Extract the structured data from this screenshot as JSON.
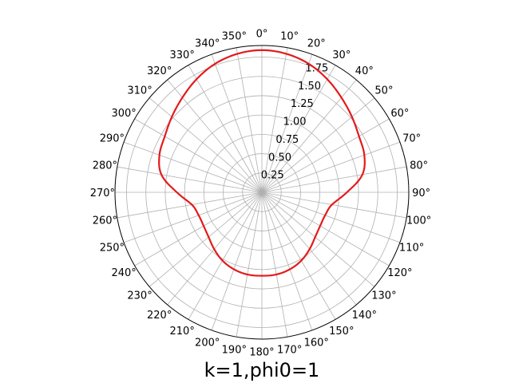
{
  "chart_data": {
    "type": "line",
    "projection": "polar",
    "title": "k=1,phi0=1",
    "theta_zero_location": "top",
    "theta_direction": "clockwise",
    "theta_ticks_deg": [
      0,
      10,
      20,
      30,
      40,
      50,
      60,
      70,
      80,
      90,
      100,
      110,
      120,
      130,
      140,
      150,
      160,
      170,
      180,
      190,
      200,
      210,
      220,
      230,
      240,
      250,
      260,
      270,
      280,
      290,
      300,
      310,
      320,
      330,
      340,
      350
    ],
    "theta_tick_labels": [
      "0°",
      "10°",
      "20°",
      "30°",
      "40°",
      "50°",
      "60°",
      "70°",
      "80°",
      "90°",
      "100°",
      "110°",
      "120°",
      "130°",
      "140°",
      "150°",
      "160°",
      "170°",
      "180°",
      "190°",
      "200°",
      "210°",
      "220°",
      "230°",
      "240°",
      "250°",
      "260°",
      "270°",
      "280°",
      "290°",
      "300°",
      "310°",
      "320°",
      "330°",
      "340°",
      "350°"
    ],
    "r_ticks": [
      0.25,
      0.5,
      0.75,
      1.0,
      1.25,
      1.5,
      1.75
    ],
    "r_tick_labels": [
      "0.25",
      "0.50",
      "0.75",
      "1.00",
      "1.25",
      "1.50",
      "1.75"
    ],
    "rlim": [
      0,
      1.9
    ],
    "grid": true,
    "series": [
      {
        "color": "#e41a1c",
        "theta_deg": [
          0,
          10,
          20,
          30,
          40,
          50,
          60,
          70,
          80,
          90,
          100,
          110,
          120,
          130,
          140,
          150,
          160,
          170,
          180,
          190,
          200,
          210,
          220,
          230,
          240,
          250,
          260,
          270,
          280,
          290,
          300,
          310,
          320,
          330,
          340,
          350
        ],
        "r": [
          1.84,
          1.82,
          1.77,
          1.69,
          1.6,
          1.52,
          1.45,
          1.41,
          1.32,
          1.1,
          0.92,
          0.87,
          0.87,
          0.9,
          0.96,
          1.02,
          1.06,
          1.08,
          1.08,
          1.08,
          1.06,
          1.02,
          0.96,
          0.9,
          0.87,
          0.87,
          0.92,
          1.1,
          1.32,
          1.41,
          1.45,
          1.52,
          1.6,
          1.69,
          1.77,
          1.82
        ]
      }
    ]
  }
}
